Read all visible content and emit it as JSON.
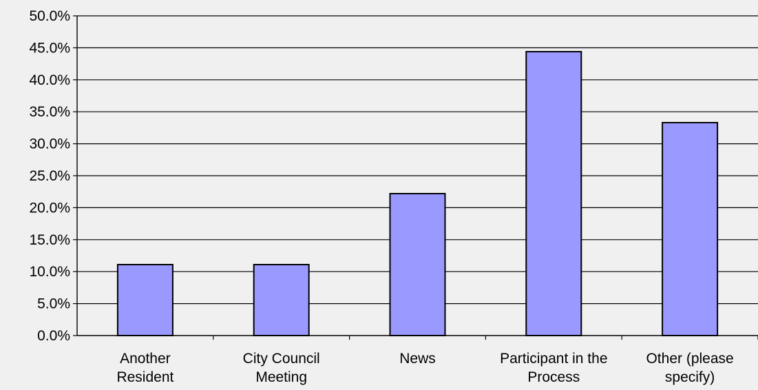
{
  "chart_data": {
    "type": "bar",
    "categories": [
      [
        "Another",
        "Resident"
      ],
      [
        "City Council",
        "Meeting"
      ],
      [
        "News"
      ],
      [
        "Participant in the",
        "Process"
      ],
      [
        "Other (please",
        "specify)"
      ]
    ],
    "values": [
      11.1,
      11.1,
      22.2,
      44.4,
      33.3
    ],
    "y_tick_labels": [
      "0.0%",
      "5.0%",
      "10.0%",
      "15.0%",
      "20.0%",
      "25.0%",
      "30.0%",
      "35.0%",
      "40.0%",
      "45.0%",
      "50.0%"
    ],
    "ylim": [
      0,
      50
    ],
    "y_tick_step": 5,
    "grid": true,
    "legend": false,
    "colors": {
      "bar": "#9999ff",
      "bar_stroke": "#000000",
      "grid": "#000000",
      "background": "#f0f0f0"
    }
  }
}
